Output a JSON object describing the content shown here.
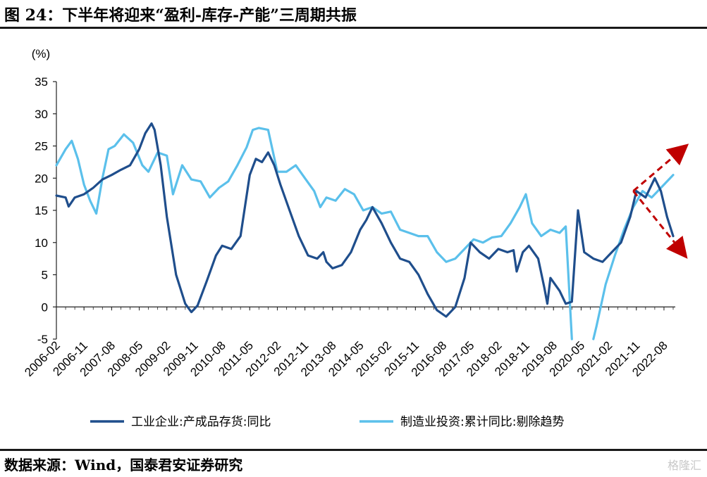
{
  "title": "图 24：下半年将迎来“盈利-库存-产能”三周期共振",
  "source": "数据来源：Wind，国泰君安证券研究",
  "watermark": "格隆汇",
  "chart_data": {
    "type": "line",
    "title": "图 24：下半年将迎来“盈利-库存-产能”三周期共振",
    "ylabel": "(%)",
    "xlabel": "",
    "ylim": [
      -5,
      35
    ],
    "yticks": [
      35,
      30,
      25,
      20,
      15,
      10,
      5,
      0,
      -5
    ],
    "xticks": [
      "2006-02",
      "2006-11",
      "2007-08",
      "2008-05",
      "2009-02",
      "2009-11",
      "2010-08",
      "2011-05",
      "2012-02",
      "2012-11",
      "2013-08",
      "2014-05",
      "2015-02",
      "2015-11",
      "2016-08",
      "2017-05",
      "2018-02",
      "2018-11",
      "2019-08",
      "2020-05",
      "2021-02",
      "2021-11",
      "2022-08"
    ],
    "legend_position": "bottom",
    "grid": false,
    "series": [
      {
        "name": "工业企业:产成品存货:同比",
        "color": "#1f4e8c",
        "points": [
          [
            "2006-02",
            17.3
          ],
          [
            "2006-05",
            17.0
          ],
          [
            "2006-06",
            15.6
          ],
          [
            "2006-08",
            17.0
          ],
          [
            "2006-11",
            17.5
          ],
          [
            "2007-02",
            18.5
          ],
          [
            "2007-05",
            19.8
          ],
          [
            "2007-08",
            20.5
          ],
          [
            "2007-11",
            21.3
          ],
          [
            "2008-02",
            22.0
          ],
          [
            "2008-05",
            24.5
          ],
          [
            "2008-07",
            27.0
          ],
          [
            "2008-09",
            28.5
          ],
          [
            "2008-10",
            27.5
          ],
          [
            "2008-12",
            22.0
          ],
          [
            "2009-02",
            14.0
          ],
          [
            "2009-05",
            5.0
          ],
          [
            "2009-08",
            0.5
          ],
          [
            "2009-10",
            -0.8
          ],
          [
            "2009-12",
            0.2
          ],
          [
            "2010-03",
            4.0
          ],
          [
            "2010-06",
            8.0
          ],
          [
            "2010-08",
            9.5
          ],
          [
            "2010-11",
            9.0
          ],
          [
            "2011-02",
            11.0
          ],
          [
            "2011-05",
            20.5
          ],
          [
            "2011-07",
            23.0
          ],
          [
            "2011-09",
            22.5
          ],
          [
            "2011-11",
            24.0
          ],
          [
            "2012-01",
            22.0
          ],
          [
            "2012-03",
            19.0
          ],
          [
            "2012-06",
            15.0
          ],
          [
            "2012-09",
            11.0
          ],
          [
            "2012-12",
            8.0
          ],
          [
            "2013-03",
            7.5
          ],
          [
            "2013-05",
            8.5
          ],
          [
            "2013-06",
            7.0
          ],
          [
            "2013-08",
            6.0
          ],
          [
            "2013-11",
            6.5
          ],
          [
            "2014-02",
            8.5
          ],
          [
            "2014-05",
            12.0
          ],
          [
            "2014-07",
            13.5
          ],
          [
            "2014-09",
            15.5
          ],
          [
            "2014-12",
            13.0
          ],
          [
            "2015-03",
            10.0
          ],
          [
            "2015-06",
            7.5
          ],
          [
            "2015-09",
            7.0
          ],
          [
            "2015-12",
            5.0
          ],
          [
            "2016-03",
            2.0
          ],
          [
            "2016-06",
            -0.5
          ],
          [
            "2016-09",
            -1.5
          ],
          [
            "2016-12",
            0.0
          ],
          [
            "2017-03",
            4.5
          ],
          [
            "2017-05",
            10.0
          ],
          [
            "2017-08",
            8.5
          ],
          [
            "2017-11",
            7.5
          ],
          [
            "2018-02",
            9.0
          ],
          [
            "2018-05",
            8.5
          ],
          [
            "2018-07",
            8.8
          ],
          [
            "2018-08",
            5.5
          ],
          [
            "2018-10",
            8.5
          ],
          [
            "2018-12",
            9.5
          ],
          [
            "2019-03",
            7.5
          ],
          [
            "2019-05",
            3.0
          ],
          [
            "2019-06",
            0.5
          ],
          [
            "2019-07",
            4.5
          ],
          [
            "2019-10",
            2.5
          ],
          [
            "2019-12",
            0.5
          ],
          [
            "2020-02",
            0.8
          ],
          [
            "2020-04",
            15.0
          ],
          [
            "2020-06",
            8.5
          ],
          [
            "2020-09",
            7.5
          ],
          [
            "2020-12",
            7.0
          ],
          [
            "2021-03",
            8.5
          ],
          [
            "2021-06",
            10.0
          ],
          [
            "2021-09",
            14.0
          ],
          [
            "2021-11",
            18.0
          ],
          [
            "2022-02",
            17.0
          ],
          [
            "2022-05",
            20.0
          ],
          [
            "2022-07",
            18.0
          ],
          [
            "2022-09",
            14.0
          ],
          [
            "2022-11",
            11.0
          ]
        ]
      },
      {
        "name": "制造业投资:累计同比:剔除趋势",
        "color": "#5bc0eb",
        "points": [
          [
            "2006-02",
            22.0
          ],
          [
            "2006-05",
            24.5
          ],
          [
            "2006-07",
            25.8
          ],
          [
            "2006-09",
            23.0
          ],
          [
            "2006-11",
            19.0
          ],
          [
            "2007-01",
            16.5
          ],
          [
            "2007-03",
            14.5
          ],
          [
            "2007-05",
            20.0
          ],
          [
            "2007-07",
            24.5
          ],
          [
            "2007-09",
            25.0
          ],
          [
            "2007-12",
            26.8
          ],
          [
            "2008-03",
            25.5
          ],
          [
            "2008-06",
            22.0
          ],
          [
            "2008-08",
            21.0
          ],
          [
            "2008-11",
            24.0
          ],
          [
            "2009-02",
            23.5
          ],
          [
            "2009-04",
            17.5
          ],
          [
            "2009-07",
            22.0
          ],
          [
            "2009-10",
            19.8
          ],
          [
            "2010-01",
            19.5
          ],
          [
            "2010-04",
            17.0
          ],
          [
            "2010-07",
            18.5
          ],
          [
            "2010-10",
            19.5
          ],
          [
            "2011-01",
            22.0
          ],
          [
            "2011-04",
            24.8
          ],
          [
            "2011-06",
            27.5
          ],
          [
            "2011-08",
            27.8
          ],
          [
            "2011-11",
            27.5
          ],
          [
            "2012-02",
            21.0
          ],
          [
            "2012-05",
            21.0
          ],
          [
            "2012-08",
            22.0
          ],
          [
            "2012-11",
            20.0
          ],
          [
            "2013-02",
            18.0
          ],
          [
            "2013-04",
            15.5
          ],
          [
            "2013-06",
            17.0
          ],
          [
            "2013-09",
            16.5
          ],
          [
            "2013-12",
            18.3
          ],
          [
            "2014-03",
            17.5
          ],
          [
            "2014-06",
            15.0
          ],
          [
            "2014-09",
            15.5
          ],
          [
            "2014-12",
            14.5
          ],
          [
            "2015-03",
            14.8
          ],
          [
            "2015-06",
            12.0
          ],
          [
            "2015-09",
            11.5
          ],
          [
            "2015-12",
            11.0
          ],
          [
            "2016-03",
            11.0
          ],
          [
            "2016-06",
            8.5
          ],
          [
            "2016-09",
            7.0
          ],
          [
            "2016-12",
            7.5
          ],
          [
            "2017-03",
            9.0
          ],
          [
            "2017-06",
            10.5
          ],
          [
            "2017-09",
            10.0
          ],
          [
            "2017-12",
            10.8
          ],
          [
            "2018-03",
            11.0
          ],
          [
            "2018-06",
            13.0
          ],
          [
            "2018-09",
            15.5
          ],
          [
            "2018-11",
            17.5
          ],
          [
            "2019-01",
            13.0
          ],
          [
            "2019-04",
            11.0
          ],
          [
            "2019-07",
            12.0
          ],
          [
            "2019-10",
            11.5
          ],
          [
            "2019-12",
            12.5
          ],
          [
            "2020-02",
            -5.0
          ]
        ],
        "points_after_break": [
          [
            "2020-09",
            -5.0
          ],
          [
            "2020-10",
            -3.0
          ],
          [
            "2021-01",
            3.5
          ],
          [
            "2021-04",
            8.0
          ],
          [
            "2021-07",
            12.0
          ],
          [
            "2021-10",
            15.5
          ],
          [
            "2022-01",
            18.0
          ],
          [
            "2022-04",
            17.0
          ],
          [
            "2022-07",
            18.5
          ],
          [
            "2022-11",
            20.5
          ]
        ]
      }
    ],
    "annotations": [
      {
        "type": "arrow",
        "from": [
          "2021-10",
          18.0
        ],
        "to": [
          "2023-03",
          24.5
        ],
        "color": "#c00000",
        "dashed": true
      },
      {
        "type": "arrow",
        "from": [
          "2021-10",
          18.0
        ],
        "to": [
          "2023-03",
          8.5
        ],
        "color": "#c00000",
        "dashed": true
      }
    ]
  }
}
